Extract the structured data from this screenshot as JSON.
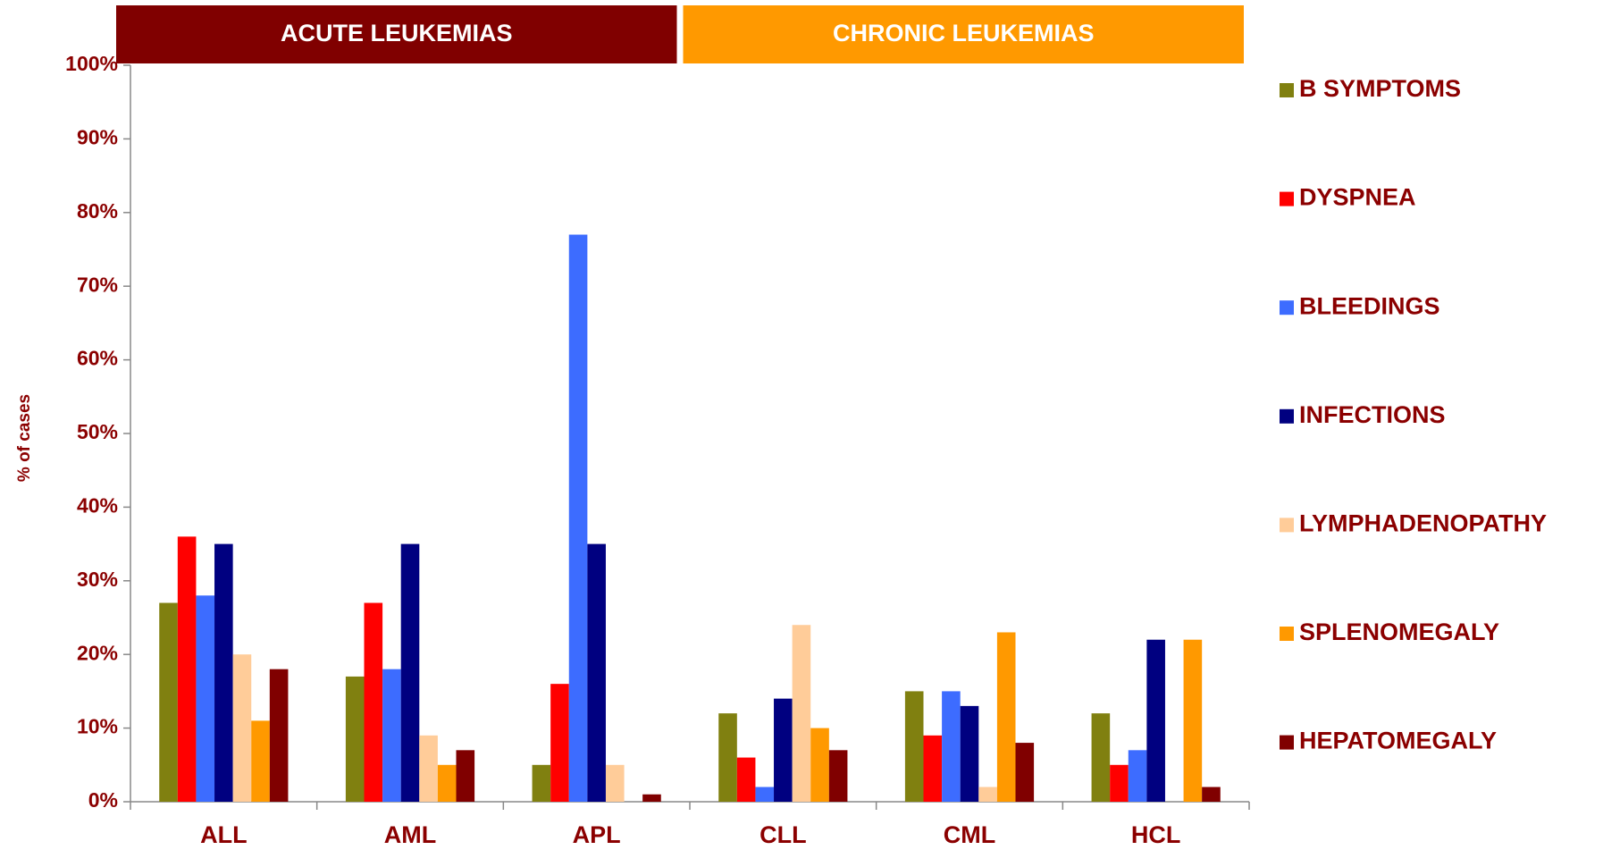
{
  "chart_data": {
    "type": "bar",
    "headers": [
      {
        "label": "ACUTE LEUKEMIAS",
        "color": "#800000"
      },
      {
        "label": "CHRONIC LEUKEMIAS",
        "color": "#ff9900"
      }
    ],
    "y_label": "% of cases",
    "categories": [
      "ALL",
      "AML",
      "APL",
      "CLL",
      "CML",
      "HCL"
    ],
    "series": [
      {
        "name": "B SYMPTOMS",
        "color": "#808010",
        "values": [
          27,
          17,
          5,
          12,
          15,
          12
        ]
      },
      {
        "name": "DYSPNEA",
        "color": "#ff0000",
        "values": [
          36,
          27,
          16,
          6,
          9,
          5
        ]
      },
      {
        "name": "BLEEDINGS",
        "color": "#3d6cff",
        "values": [
          28,
          18,
          77,
          2,
          15,
          7
        ]
      },
      {
        "name": "INFECTIONS",
        "color": "#000080",
        "values": [
          35,
          35,
          35,
          14,
          13,
          22
        ]
      },
      {
        "name": "LYMPHADENOPATHY",
        "color": "#ffcc99",
        "values": [
          20,
          9,
          5,
          24,
          2,
          0
        ]
      },
      {
        "name": "SPLENOMEGALY",
        "color": "#ff9900",
        "values": [
          11,
          5,
          0,
          10,
          23,
          22
        ]
      },
      {
        "name": "HEPATOMEGALY",
        "color": "#800000",
        "values": [
          18,
          7,
          1,
          7,
          8,
          2
        ]
      }
    ],
    "ylim": [
      0,
      100
    ],
    "yticks": [
      {
        "value": 0,
        "label": "0%"
      },
      {
        "value": 10,
        "label": "10%"
      },
      {
        "value": 20,
        "label": "20%"
      },
      {
        "value": 30,
        "label": "30%"
      },
      {
        "value": 40,
        "label": "40%"
      },
      {
        "value": 50,
        "label": "50%"
      },
      {
        "value": 60,
        "label": "60%"
      },
      {
        "value": 70,
        "label": "70%"
      },
      {
        "value": 80,
        "label": "80%"
      },
      {
        "value": 90,
        "label": "90%"
      },
      {
        "value": 100,
        "label": "100%"
      }
    ],
    "legend": "right"
  }
}
